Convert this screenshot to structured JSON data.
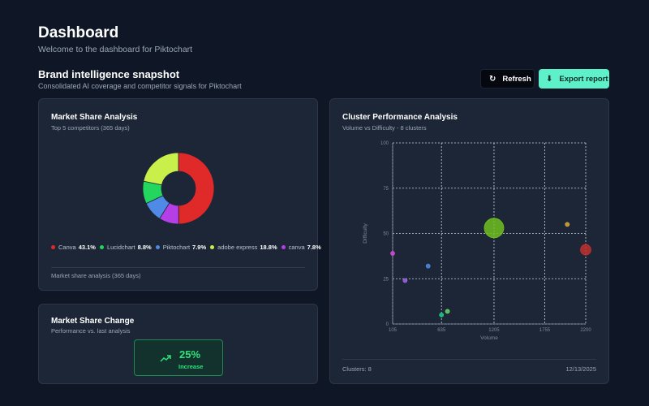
{
  "header": {
    "title": "Dashboard",
    "subtitle": "Welcome to the dashboard for Piktochart"
  },
  "section": {
    "title": "Brand intelligence snapshot",
    "subtitle": "Consolidated AI coverage and competitor signals for Piktochart"
  },
  "actions": {
    "refresh_label": "Refresh",
    "refresh_icon": "refresh-icon",
    "export_label": "Export report",
    "export_icon": "download-icon"
  },
  "market_share": {
    "title": "Market Share Analysis",
    "subtitle": "Top 5 competitors (365 days)",
    "footer": "Market share analysis (365 days)",
    "legend": [
      {
        "name": "Canva",
        "pct": "43.1%",
        "color": "#e02a2a"
      },
      {
        "name": "Lucidchart",
        "pct": "8.8%",
        "color": "#22d65e"
      },
      {
        "name": "Piktochart",
        "pct": "7.9%",
        "color": "#4f8ae6"
      },
      {
        "name": "adobe express",
        "pct": "18.8%",
        "color": "#c9f04a"
      },
      {
        "name": "canva",
        "pct": "7.8%",
        "color": "#b53fe6"
      }
    ]
  },
  "market_change": {
    "title": "Market Share Change",
    "subtitle": "Performance vs. last analysis",
    "value": "25%",
    "label": "Increase",
    "icon": "trending-up-icon",
    "color": "#2ee27b"
  },
  "cluster": {
    "title": "Cluster Performance Analysis",
    "subtitle": "Volume vs Difficulty - 8 clusters",
    "footer_left": "Clusters: 8",
    "footer_right": "12/13/2025"
  },
  "chart_data": [
    {
      "type": "pie",
      "style": "donut",
      "labels": [
        "Canva",
        "Lucidchart",
        "Piktochart",
        "adobe express",
        "canva"
      ],
      "values": [
        43.1,
        8.8,
        7.9,
        18.8,
        7.8
      ],
      "colors": [
        "#e02a2a",
        "#22d65e",
        "#4f8ae6",
        "#c9f04a",
        "#b53fe6"
      ],
      "slice_order": [
        "Canva",
        "canva",
        "Piktochart",
        "Lucidchart",
        "adobe express"
      ]
    },
    {
      "type": "scatter",
      "style": "bubble",
      "xlabel": "Volume",
      "ylabel": "Difficulty",
      "xlim": [
        105,
        2200
      ],
      "ylim": [
        0,
        100
      ],
      "x_ticks": [
        "105",
        "635",
        "1205",
        "1755",
        "2200"
      ],
      "x_tick_values": [
        105,
        635,
        1205,
        1755,
        2200
      ],
      "y_ticks": [
        0,
        25,
        50,
        75,
        100
      ],
      "grid": true,
      "points": [
        {
          "x": 105,
          "y": 39,
          "r": 2.5,
          "color": "#d24ad8"
        },
        {
          "x": 240,
          "y": 24,
          "r": 2.5,
          "color": "#a064e8"
        },
        {
          "x": 490,
          "y": 32,
          "r": 2.5,
          "color": "#4f8ae6"
        },
        {
          "x": 635,
          "y": 5,
          "r": 2.5,
          "color": "#20c98a"
        },
        {
          "x": 700,
          "y": 7,
          "r": 2.5,
          "color": "#66d66a"
        },
        {
          "x": 1205,
          "y": 53,
          "r": 12,
          "color": "#6fbf1e"
        },
        {
          "x": 2000,
          "y": 55,
          "r": 2.5,
          "color": "#d9a93a"
        },
        {
          "x": 2200,
          "y": 41,
          "r": 6.5,
          "color": "#c0302e"
        }
      ]
    }
  ]
}
